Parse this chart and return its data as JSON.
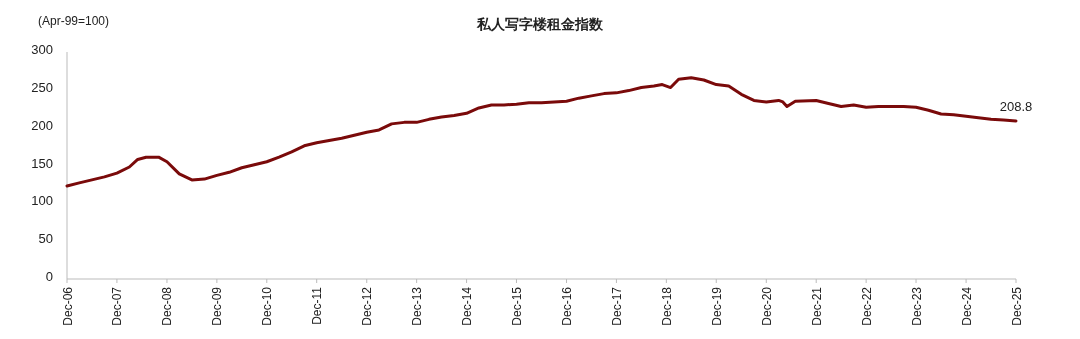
{
  "chart_data": {
    "type": "line",
    "title": "私人写字楼租金指数",
    "ylabel": "(Apr-99=100)",
    "x": [
      "2006-12",
      "2007-03",
      "2007-06",
      "2007-09",
      "2007-12",
      "2008-03",
      "2008-05",
      "2008-07",
      "2008-10",
      "2008-12",
      "2009-03",
      "2009-06",
      "2009-09",
      "2009-12",
      "2010-03",
      "2010-06",
      "2010-09",
      "2010-12",
      "2011-03",
      "2011-06",
      "2011-09",
      "2011-12",
      "2012-03",
      "2012-06",
      "2012-09",
      "2012-12",
      "2013-03",
      "2013-06",
      "2013-09",
      "2013-12",
      "2014-03",
      "2014-06",
      "2014-09",
      "2014-12",
      "2015-03",
      "2015-06",
      "2015-09",
      "2015-12",
      "2016-03",
      "2016-06",
      "2016-09",
      "2016-12",
      "2017-03",
      "2017-06",
      "2017-09",
      "2017-12",
      "2018-03",
      "2018-06",
      "2018-09",
      "2018-11",
      "2019-01",
      "2019-03",
      "2019-06",
      "2019-09",
      "2019-12",
      "2020-03",
      "2020-06",
      "2020-09",
      "2020-12",
      "2021-03",
      "2021-04",
      "2021-05",
      "2021-07",
      "2021-12",
      "2022-03",
      "2022-06",
      "2022-09",
      "2022-12",
      "2023-03",
      "2023-06",
      "2023-09",
      "2023-12",
      "2024-03",
      "2024-06",
      "2024-09",
      "2024-12",
      "2025-03",
      "2025-06",
      "2025-09",
      "2025-12"
    ],
    "series": [
      {
        "color": "#7a0a0a",
        "values": [
          123,
          127,
          131,
          135,
          140,
          148,
          158,
          161,
          161,
          155,
          139,
          131,
          132,
          137,
          141,
          147,
          151,
          155,
          161,
          168,
          176,
          180,
          183,
          186,
          190,
          194,
          197,
          205,
          207,
          207,
          211,
          214,
          216,
          219,
          226,
          230,
          230,
          231,
          233,
          233,
          234,
          235,
          239,
          242,
          245,
          246,
          249,
          253,
          255,
          257,
          253,
          264,
          266,
          263,
          257,
          255,
          244,
          236,
          234,
          236,
          234,
          228,
          235,
          236,
          232,
          228,
          230,
          227,
          228,
          228,
          228,
          227,
          223,
          218,
          217,
          215,
          213,
          211,
          210,
          208.8
        ]
      }
    ],
    "xlim": [
      "2006-12",
      "2025-12"
    ],
    "xticks": [
      {
        "value": "2006-12",
        "label": "Dec-06"
      },
      {
        "value": "2007-12",
        "label": "Dec-07"
      },
      {
        "value": "2008-12",
        "label": "Dec-08"
      },
      {
        "value": "2009-12",
        "label": "Dec-09"
      },
      {
        "value": "2010-12",
        "label": "Dec-10"
      },
      {
        "value": "2011-12",
        "label": "Dec-11"
      },
      {
        "value": "2012-12",
        "label": "Dec-12"
      },
      {
        "value": "2013-12",
        "label": "Dec-13"
      },
      {
        "value": "2014-12",
        "label": "Dec-14"
      },
      {
        "value": "2015-12",
        "label": "Dec-15"
      },
      {
        "value": "2016-12",
        "label": "Dec-16"
      },
      {
        "value": "2017-12",
        "label": "Dec-17"
      },
      {
        "value": "2018-12",
        "label": "Dec-18"
      },
      {
        "value": "2019-12",
        "label": "Dec-19"
      },
      {
        "value": "2020-12",
        "label": "Dec-20"
      },
      {
        "value": "2021-12",
        "label": "Dec-21"
      },
      {
        "value": "2022-12",
        "label": "Dec-22"
      },
      {
        "value": "2023-12",
        "label": "Dec-23"
      },
      {
        "value": "2024-12",
        "label": "Dec-24"
      },
      {
        "value": "2025-12",
        "label": "Dec-25"
      }
    ],
    "ylim": [
      0,
      300
    ],
    "yticks": [
      0,
      50,
      100,
      150,
      200,
      250,
      300
    ],
    "annotations": [
      {
        "text": "208.8",
        "x": "2025-12",
        "y": 208.8
      }
    ],
    "grid": false
  }
}
